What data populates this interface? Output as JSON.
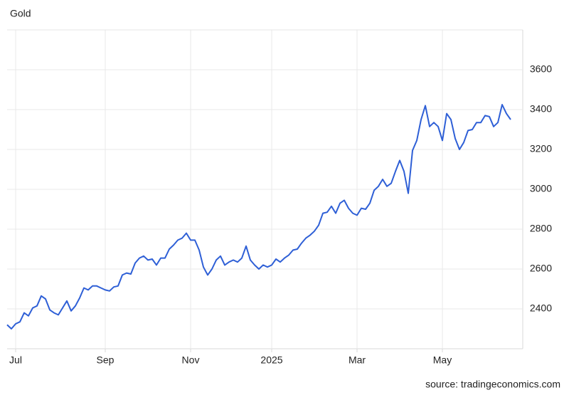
{
  "chart_data": {
    "type": "line",
    "title": "Gold",
    "source": "source: tradingeconomics.com",
    "categories": [
      null,
      null,
      "Jul",
      null,
      null,
      null,
      null,
      null,
      null,
      null,
      null,
      null,
      null,
      null,
      null,
      null,
      null,
      null,
      null,
      null,
      null,
      null,
      null,
      "Sep",
      null,
      null,
      null,
      null,
      null,
      null,
      null,
      null,
      null,
      null,
      null,
      null,
      null,
      null,
      null,
      null,
      null,
      null,
      null,
      "Nov",
      null,
      null,
      null,
      null,
      null,
      null,
      null,
      null,
      null,
      null,
      null,
      null,
      null,
      null,
      null,
      null,
      null,
      null,
      "2025",
      null,
      null,
      null,
      null,
      null,
      null,
      null,
      null,
      null,
      null,
      null,
      null,
      null,
      null,
      null,
      null,
      null,
      null,
      null,
      "Mar",
      null,
      null,
      null,
      null,
      null,
      null,
      null,
      null,
      null,
      null,
      null,
      null,
      null,
      null,
      null,
      null,
      null,
      null,
      null,
      "May",
      null,
      null,
      null,
      null,
      null,
      null,
      null,
      null,
      null,
      null,
      null,
      null,
      null,
      null,
      null,
      null
    ],
    "values": [
      2320,
      2300,
      2325,
      2335,
      2380,
      2365,
      2405,
      2415,
      2465,
      2450,
      2395,
      2380,
      2370,
      2405,
      2440,
      2390,
      2415,
      2455,
      2505,
      2495,
      2515,
      2515,
      2505,
      2495,
      2490,
      2510,
      2515,
      2570,
      2580,
      2575,
      2630,
      2655,
      2665,
      2645,
      2650,
      2620,
      2655,
      2655,
      2700,
      2720,
      2745,
      2755,
      2780,
      2745,
      2745,
      2695,
      2610,
      2570,
      2600,
      2645,
      2665,
      2620,
      2635,
      2645,
      2635,
      2655,
      2715,
      2645,
      2620,
      2600,
      2620,
      2610,
      2620,
      2650,
      2635,
      2655,
      2670,
      2695,
      2700,
      2730,
      2755,
      2770,
      2790,
      2820,
      2880,
      2885,
      2915,
      2880,
      2930,
      2945,
      2905,
      2880,
      2870,
      2905,
      2900,
      2930,
      2995,
      3015,
      3050,
      3015,
      3030,
      3090,
      3145,
      3090,
      2980,
      3195,
      3245,
      3350,
      3420,
      3315,
      3335,
      3315,
      3245,
      3380,
      3350,
      3255,
      3200,
      3235,
      3295,
      3300,
      3335,
      3335,
      3370,
      3365,
      3315,
      3335,
      3425,
      3380,
      3350
    ],
    "color": "#2e5fd6",
    "ylim": [
      2200,
      3800
    ],
    "yticks": [
      2400,
      2600,
      2800,
      3000,
      3200,
      3400,
      3600
    ],
    "grid": true
  }
}
